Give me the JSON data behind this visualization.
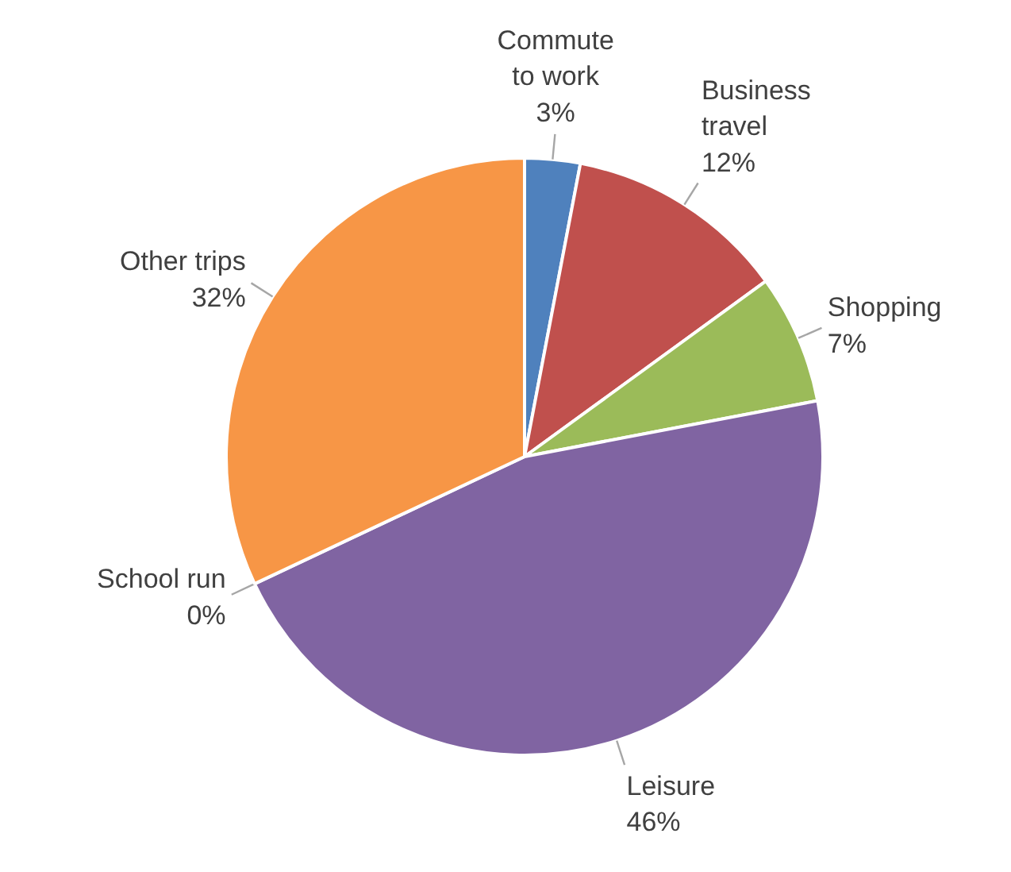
{
  "chart_data": {
    "type": "pie",
    "categories": [
      "Commute to work",
      "Business travel",
      "Shopping",
      "Leisure",
      "School run",
      "Other trips"
    ],
    "values": [
      3,
      12,
      7,
      46,
      0,
      32
    ],
    "colors": [
      "#4f81bd",
      "#c0504d",
      "#9bbb59",
      "#8064a2",
      "#4bacc6",
      "#f79646"
    ],
    "value_labels": [
      "3%",
      "12%",
      "7%",
      "46%",
      "0%",
      "32%"
    ]
  }
}
